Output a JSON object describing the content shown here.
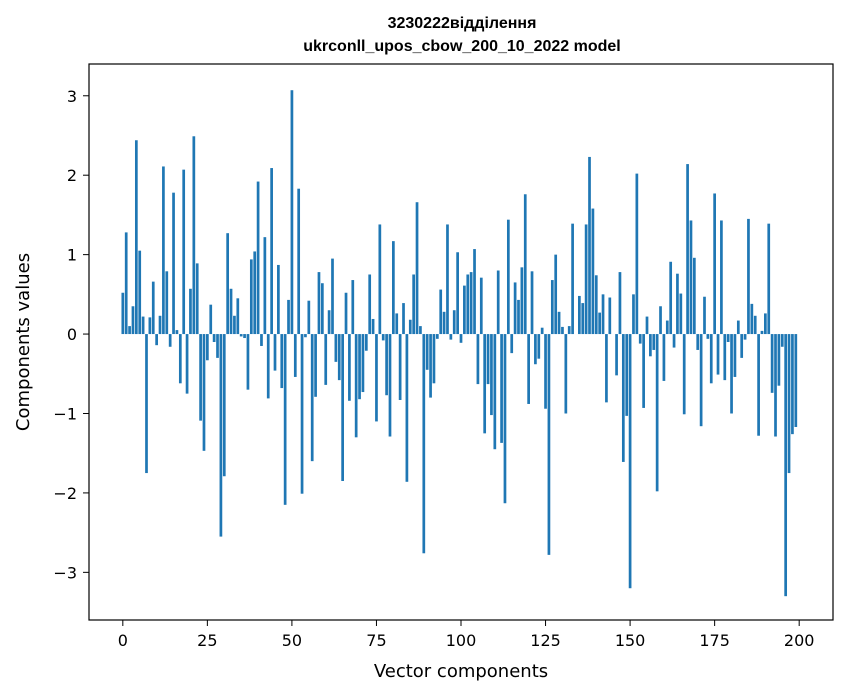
{
  "chart_data": {
    "type": "bar",
    "title_line1": "3230222відділення",
    "title_line2": "ukrconll_upos_cbow_200_10_2022 model",
    "xlabel": "Vector components",
    "ylabel": "Components values",
    "xlim": [
      -10,
      210
    ],
    "ylim": [
      -3.6,
      3.4
    ],
    "xticks": [
      0,
      25,
      50,
      75,
      100,
      125,
      150,
      175,
      200
    ],
    "yticks": [
      -3,
      -2,
      -1,
      0,
      1,
      2,
      3
    ],
    "ytick_labels": [
      "−3",
      "−2",
      "−1",
      "0",
      "1",
      "2",
      "3"
    ],
    "bar_color": "#1f77b4",
    "values": [
      0.52,
      1.28,
      0.1,
      0.35,
      2.44,
      1.05,
      0.22,
      -1.75,
      0.21,
      0.66,
      -0.14,
      0.23,
      2.11,
      0.79,
      -0.16,
      1.78,
      0.05,
      -0.62,
      2.07,
      -0.75,
      0.57,
      2.49,
      0.89,
      -1.09,
      -1.47,
      -0.33,
      0.37,
      -0.1,
      -0.3,
      -2.55,
      -1.79,
      1.27,
      0.57,
      0.23,
      0.45,
      -0.03,
      -0.05,
      -0.7,
      0.94,
      1.04,
      1.92,
      -0.15,
      1.22,
      -0.81,
      2.09,
      -0.46,
      0.87,
      -0.68,
      -2.15,
      0.43,
      3.07,
      -0.54,
      1.83,
      -2.01,
      -0.04,
      0.42,
      -1.6,
      -0.79,
      0.78,
      0.64,
      -0.64,
      0.3,
      0.95,
      -0.35,
      -0.58,
      -1.85,
      0.52,
      -0.84,
      0.68,
      -1.3,
      -0.82,
      -0.73,
      -0.21,
      0.75,
      0.19,
      -1.1,
      1.38,
      -0.08,
      -0.77,
      -1.29,
      1.17,
      0.26,
      -0.83,
      0.39,
      -1.86,
      0.18,
      0.75,
      1.66,
      0.1,
      -2.76,
      -0.45,
      -0.8,
      -0.62,
      -0.06,
      0.56,
      0.28,
      1.38,
      -0.07,
      0.3,
      1.03,
      -0.11,
      0.61,
      0.75,
      0.78,
      1.07,
      -0.63,
      0.71,
      -1.25,
      -0.63,
      -1.02,
      -1.45,
      0.8,
      -1.37,
      -2.13,
      1.44,
      -0.24,
      0.65,
      0.43,
      0.84,
      1.76,
      -0.88,
      0.79,
      -0.38,
      -0.31,
      0.08,
      -0.94,
      -2.78,
      0.68,
      1.0,
      0.28,
      0.09,
      -1.0,
      0.1,
      1.39,
      0.0,
      0.48,
      0.39,
      1.38,
      2.23,
      1.58,
      0.74,
      0.27,
      0.5,
      -0.86,
      0.46,
      0.0,
      -0.52,
      0.78,
      -1.61,
      -1.03,
      -3.2,
      0.5,
      2.02,
      -0.12,
      -0.93,
      0.22,
      -0.28,
      -0.2,
      -1.98,
      0.35,
      -0.59,
      0.17,
      0.91,
      -0.17,
      0.76,
      0.51,
      -1.01,
      2.14,
      1.43,
      0.96,
      -0.2,
      -1.16,
      0.47,
      -0.06,
      -0.62,
      1.77,
      -0.51,
      1.43,
      -0.58,
      -0.1,
      -1.0,
      -0.54,
      0.17,
      -0.3,
      -0.07,
      1.45,
      0.38,
      0.23,
      -1.28,
      0.04,
      0.26,
      1.39,
      -0.74,
      -1.29,
      -0.65,
      -0.16,
      -3.3,
      -1.75,
      -1.26,
      -1.17
    ]
  }
}
